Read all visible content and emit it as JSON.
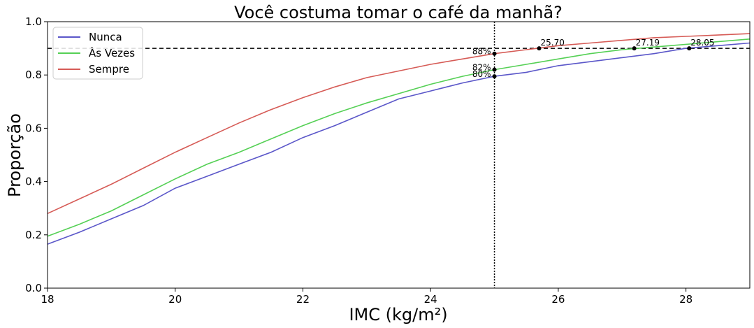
{
  "chart_data": {
    "type": "line",
    "title": "Você costuma tomar o café da manhã?",
    "xlabel": "IMC (kg/m²)",
    "ylabel": "Proporção",
    "xlim": [
      18,
      29
    ],
    "ylim": [
      0.0,
      1.0
    ],
    "xticks": [
      18,
      20,
      22,
      24,
      26,
      28
    ],
    "xtick_labels": [
      "18",
      "20",
      "22",
      "24",
      "26",
      "28"
    ],
    "yticks": [
      0.0,
      0.2,
      0.4,
      0.6,
      0.8,
      1.0
    ],
    "ytick_labels": [
      "0.0",
      "0.2",
      "0.4",
      "0.6",
      "0.8",
      "1.0"
    ],
    "grid": false,
    "legend_position": "top-left",
    "reference_lines": {
      "horizontal_y": 0.9,
      "vertical_x": 25
    },
    "series": [
      {
        "name": "Nunca",
        "color": "#5b57c9",
        "x": [
          18,
          18.5,
          19,
          19.5,
          20,
          20.5,
          21,
          21.5,
          22,
          22.5,
          23,
          23.5,
          24,
          24.5,
          25,
          25.5,
          26,
          26.5,
          27,
          27.5,
          28,
          28.5,
          29
        ],
        "y": [
          0.165,
          0.21,
          0.26,
          0.31,
          0.375,
          0.42,
          0.465,
          0.51,
          0.565,
          0.61,
          0.66,
          0.71,
          0.74,
          0.77,
          0.795,
          0.81,
          0.835,
          0.85,
          0.865,
          0.88,
          0.9,
          0.91,
          0.92
        ]
      },
      {
        "name": "Às Vezes",
        "color": "#55d055",
        "x": [
          18,
          18.5,
          19,
          19.5,
          20,
          20.5,
          21,
          21.5,
          22,
          22.5,
          23,
          23.5,
          24,
          24.5,
          25,
          25.5,
          26,
          26.5,
          27,
          27.5,
          28,
          28.5,
          29
        ],
        "y": [
          0.195,
          0.24,
          0.29,
          0.35,
          0.41,
          0.465,
          0.51,
          0.56,
          0.61,
          0.655,
          0.695,
          0.73,
          0.765,
          0.795,
          0.82,
          0.84,
          0.86,
          0.88,
          0.895,
          0.905,
          0.915,
          0.925,
          0.935
        ]
      },
      {
        "name": "Sempre",
        "color": "#d65b56",
        "x": [
          18,
          18.5,
          19,
          19.5,
          20,
          20.5,
          21,
          21.5,
          22,
          22.5,
          23,
          23.5,
          24,
          24.5,
          25,
          25.5,
          26,
          26.5,
          27,
          27.5,
          28,
          28.5,
          29
        ],
        "y": [
          0.28,
          0.335,
          0.39,
          0.45,
          0.51,
          0.565,
          0.62,
          0.67,
          0.715,
          0.755,
          0.79,
          0.815,
          0.84,
          0.86,
          0.88,
          0.895,
          0.91,
          0.92,
          0.93,
          0.94,
          0.945,
          0.95,
          0.955
        ]
      }
    ],
    "markers_at_x25": [
      {
        "series": "Sempre",
        "x": 25,
        "y": 0.88,
        "label": "88%"
      },
      {
        "series": "Às Vezes",
        "x": 25,
        "y": 0.82,
        "label": "82%"
      },
      {
        "series": "Nunca",
        "x": 25,
        "y": 0.795,
        "label": "80%"
      }
    ],
    "markers_at_y90": [
      {
        "series": "Sempre",
        "x": 25.7,
        "y": 0.9,
        "label": "25.70"
      },
      {
        "series": "Às Vezes",
        "x": 27.19,
        "y": 0.9,
        "label": "27.19"
      },
      {
        "series": "Nunca",
        "x": 28.05,
        "y": 0.9,
        "label": "28.05"
      }
    ]
  }
}
